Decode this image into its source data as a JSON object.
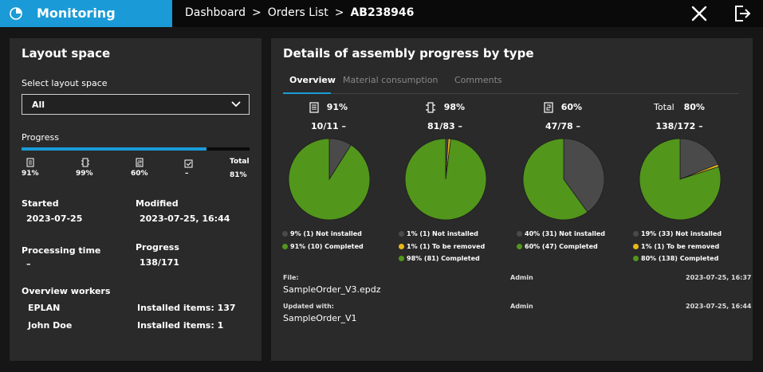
{
  "topbar": {
    "app_title": "Monitoring",
    "logo_icon": "pie-chart-icon",
    "breadcrumb": [
      "Dashboard",
      "Orders List",
      "AB238946"
    ],
    "close_icon": "close-icon",
    "exit_icon": "logout-icon"
  },
  "layout": {
    "title": "Layout space",
    "select_label": "Select layout space",
    "select_value": "All",
    "progress_label": "Progress",
    "progress_fraction": 0.81,
    "type_stats": [
      {
        "icon": "document-icon",
        "value": "91%"
      },
      {
        "icon": "component-icon",
        "value": "99%"
      },
      {
        "icon": "cable-icon",
        "value": "60%"
      },
      {
        "icon": "checkbox-icon",
        "value": "–"
      }
    ],
    "total_label": "Total",
    "total_value": "81%",
    "started_label": "Started",
    "started_value": "2023-07-25",
    "modified_label": "Modified",
    "modified_value": "2023-07-25, 16:44",
    "processing_label": "Processing time",
    "processing_value": "–",
    "progress2_label": "Progress",
    "progress2_value": "138/171",
    "workers_label": "Overview workers",
    "workers": [
      {
        "name": "EPLAN",
        "items_label": "Installed items: 137"
      },
      {
        "name": "John Doe",
        "items_label": "Installed items: 1"
      }
    ]
  },
  "details": {
    "title": "Details of assembly progress by type",
    "tabs": [
      {
        "label": "Overview",
        "active": true
      },
      {
        "label": "Material consumption",
        "active": false
      },
      {
        "label": "Comments",
        "active": false
      }
    ],
    "colors": {
      "completed": "#52961c",
      "not_installed": "#4a4a4a",
      "to_remove": "#e8b81a"
    },
    "file_label": "File:",
    "file_value": "SampleOrder_V3.epdz",
    "file_user": "Admin",
    "file_time": "2023-07-25, 16:37",
    "updated_label": "Updated with:",
    "updated_value": "SampleOrder_V1",
    "updated_user": "Admin",
    "updated_time": "2023-07-25, 16:44"
  },
  "chart_data": [
    {
      "type": "pie",
      "header_icon": "document-icon",
      "header_text": "91%",
      "count": "10/11 –",
      "slices": [
        {
          "key": "not_installed",
          "value": 9,
          "label": "9% (1) Not installed"
        },
        {
          "key": "completed",
          "value": 91,
          "label": "91% (10) Completed"
        }
      ]
    },
    {
      "type": "pie",
      "header_icon": "component-icon",
      "header_text": "98%",
      "count": "81/83 –",
      "slices": [
        {
          "key": "not_installed",
          "value": 1,
          "label": "1% (1) Not installed"
        },
        {
          "key": "to_remove",
          "value": 1,
          "label": "1% (1) To be removed"
        },
        {
          "key": "completed",
          "value": 98,
          "label": "98% (81) Completed"
        }
      ]
    },
    {
      "type": "pie",
      "header_icon": "cable-icon",
      "header_text": "60%",
      "count": "47/78 –",
      "slices": [
        {
          "key": "not_installed",
          "value": 40,
          "label": "40% (31) Not installed"
        },
        {
          "key": "completed",
          "value": 60,
          "label": "60% (47) Completed"
        }
      ]
    },
    {
      "type": "pie",
      "header_icon": "",
      "header_label": "Total",
      "header_text": "80%",
      "count": "138/172 –",
      "slices": [
        {
          "key": "not_installed",
          "value": 19,
          "label": "19% (33) Not installed"
        },
        {
          "key": "to_remove",
          "value": 1,
          "label": "1% (1) To be removed"
        },
        {
          "key": "completed",
          "value": 80,
          "label": "80% (138) Completed"
        }
      ]
    }
  ]
}
